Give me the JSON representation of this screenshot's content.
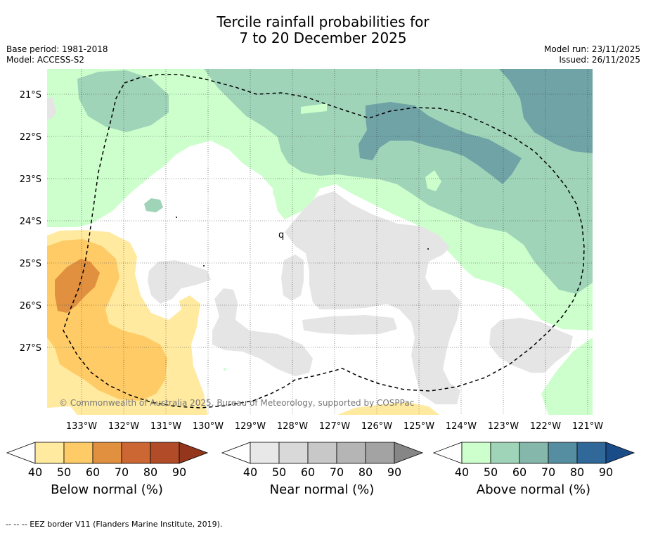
{
  "title": {
    "line1": "Tercile rainfall probabilities for",
    "line2": "7 to 20 December 2025"
  },
  "meta": {
    "base_period": "Base period: 1981-2018",
    "model": "Model: ACCESS-S2",
    "model_run": "Model run: 23/11/2025",
    "issued": "Issued: 26/11/2025"
  },
  "map": {
    "lat_labels": [
      "21°S",
      "22°S",
      "23°S",
      "24°S",
      "25°S",
      "26°S",
      "27°S"
    ],
    "lon_labels": [
      "133°W",
      "132°W",
      "131°W",
      "130°W",
      "129°W",
      "128°W",
      "127°W",
      "126°W",
      "125°W",
      "124°W",
      "123°W",
      "122°W",
      "121°W"
    ],
    "copyright": "© Commonwealth of Australia 2025, Bureau of Meteorology, supported by COSPPac",
    "small_label": "q"
  },
  "colorbars": [
    {
      "title": "Below normal (%)",
      "ticks": [
        "40",
        "50",
        "60",
        "70",
        "80",
        "90"
      ],
      "colors": [
        "#ffffff",
        "#ffeaa0",
        "#fecb66",
        "#e0903f",
        "#cc6633",
        "#b24b27",
        "#93361c"
      ]
    },
    {
      "title": "Near normal (%)",
      "ticks": [
        "40",
        "50",
        "60",
        "70",
        "80",
        "90"
      ],
      "colors": [
        "#ffffff",
        "#e8e8e8",
        "#d9d9d9",
        "#c8c8c8",
        "#b5b5b5",
        "#a3a3a3",
        "#868686"
      ]
    },
    {
      "title": "Above normal (%)",
      "ticks": [
        "40",
        "50",
        "60",
        "70",
        "80",
        "90"
      ],
      "colors": [
        "#ffffff",
        "#ccffcc",
        "#9fd4b8",
        "#85b8ab",
        "#558ea0",
        "#2f6899",
        "#1a4c88"
      ]
    }
  ],
  "colors": {
    "above_40": "#ccffcc",
    "above_50": "#9fd4b8",
    "above_60": "#6fa3a6",
    "below_40": "#ffeaa0",
    "below_50": "#fecb66",
    "below_60": "#e0903f",
    "near_40": "#e5e5e5"
  },
  "footer": "--  --  -- EEZ border V11 (Flanders Marine Institute, 2019)."
}
